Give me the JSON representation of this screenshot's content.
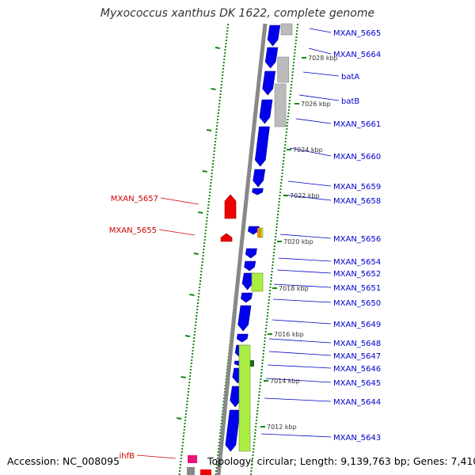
{
  "title": "Myxococcus xanthus DK 1622, complete genome",
  "footer": {
    "accession": "Accession: NC_008095",
    "stats": "Topology: circular; Length: 9,139,763 bp; Genes: 7,410"
  },
  "colors": {
    "backbone": "#888888",
    "forward_gene": "#0000ee",
    "reverse_gene": "#ee0000",
    "gray_gene": "#bbbbbb",
    "green_feature": "#aaee44",
    "tick": "#118811",
    "label_blue": "#0000cc",
    "label_red": "#cc0000",
    "pink_gene": "#ee1177"
  },
  "kbp_ticks": [
    "7028 kbp",
    "7026 kbp",
    "7024 kbp",
    "7022 kbp",
    "7020 kbp",
    "7018 kbp",
    "7016 kbp",
    "7014 kbp",
    "7012 kbp"
  ],
  "right_labels": [
    "MXAN_5665",
    "MXAN_5664",
    "batA",
    "batB",
    "MXAN_5661",
    "MXAN_5660",
    "MXAN_5659",
    "MXAN_5658",
    "MXAN_5656",
    "MXAN_5654",
    "MXAN_5652",
    "MXAN_5651",
    "MXAN_5650",
    "MXAN_5649",
    "MXAN_5648",
    "MXAN_5647",
    "MXAN_5646",
    "MXAN_5645",
    "MXAN_5644",
    "MXAN_5643"
  ],
  "left_labels": [
    "MXAN_5657",
    "MXAN_5655",
    "ihfB"
  ]
}
